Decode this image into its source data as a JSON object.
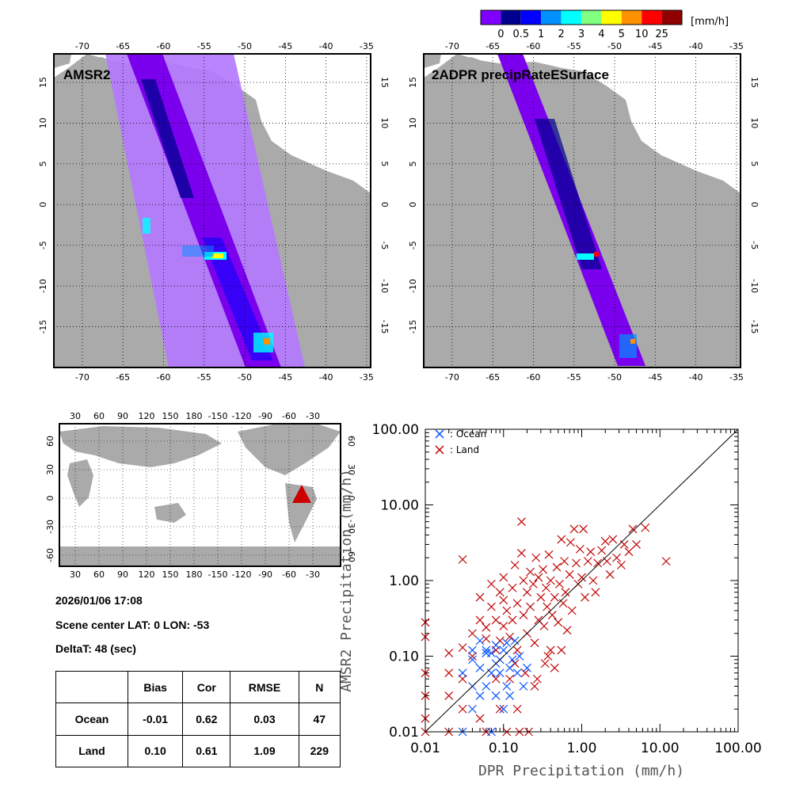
{
  "colorbar": {
    "unit": "[mm/h]",
    "labels": [
      "0",
      "0.5",
      "1",
      "2",
      "3",
      "4",
      "5",
      "10",
      "25"
    ],
    "colors": [
      "#7f00ff",
      "#000090",
      "#0000ff",
      "#0090ff",
      "#00ffff",
      "#80ff80",
      "#ffff00",
      "#ff9000",
      "#ff0000",
      "#900000"
    ]
  },
  "colors": {
    "land": "#aaaaaa",
    "amsr2_light": "#b47aff",
    "amsr2_band": "#7a00ee",
    "ocean_marker": "#0050ff",
    "land_marker": "#c00000",
    "triangle": "#cc0000"
  },
  "map_left": {
    "title": "AMSR2",
    "lon_labels": [
      "-70",
      "-65",
      "-60",
      "-55",
      "-50",
      "-45",
      "-40",
      "-35"
    ],
    "lat_labels": [
      "15",
      "10",
      "5",
      "0",
      "-5",
      "-10",
      "-15"
    ]
  },
  "map_right": {
    "title": "2ADPR precipRateESurface",
    "lon_labels": [
      "-70",
      "-65",
      "-60",
      "-55",
      "-50",
      "-45",
      "-40",
      "-35"
    ],
    "lat_labels": [
      "15",
      "10",
      "5",
      "0",
      "-5",
      "-10",
      "-15"
    ]
  },
  "world_map": {
    "lon_labels": [
      "30",
      "60",
      "90",
      "120",
      "150",
      "180",
      "-150",
      "-120",
      "-90",
      "-60",
      "-30"
    ],
    "lat_labels": [
      "60",
      "30",
      "0",
      "-30",
      "-60"
    ],
    "scene_marker": {
      "lon": -53,
      "lat": 0
    }
  },
  "info": {
    "datetime": "2026/01/06 17:08",
    "scene_center": "Scene center LAT:  0   LON: -53",
    "deltat": "DeltaT:   48 (sec)"
  },
  "stats_table": {
    "headers": [
      "Bias",
      "Cor",
      "RMSE",
      "N"
    ],
    "rows": [
      {
        "label": "Ocean",
        "bias": "-0.01",
        "cor": "0.62",
        "rmse": "0.03",
        "n": "47"
      },
      {
        "label": "Land",
        "bias": "0.10",
        "cor": "0.61",
        "rmse": "1.09",
        "n": "229"
      }
    ]
  },
  "chart_data": {
    "type": "scatter",
    "xlabel": "DPR Precipitation (mm/h)",
    "ylabel": "AMSR2 Precipitation (mm/h)",
    "xscale": "log",
    "yscale": "log",
    "xlim": [
      0.01,
      100
    ],
    "ylim": [
      0.01,
      100
    ],
    "x_tick_labels": [
      "0.01",
      "0.10",
      "1.00",
      "10.00",
      "100.00"
    ],
    "y_tick_labels": [
      "0.01",
      "0.10",
      "1.00",
      "10.00",
      "100.00"
    ],
    "reference_line": "1:1",
    "legend": [
      {
        "name": ": Ocean",
        "marker": "x",
        "color": "#0050ff"
      },
      {
        "name": ": Land",
        "marker": "x",
        "color": "#c00000"
      }
    ],
    "series": [
      {
        "name": "Ocean",
        "color": "#0050ff",
        "points": [
          [
            0.03,
            0.06
          ],
          [
            0.04,
            0.04
          ],
          [
            0.04,
            0.09
          ],
          [
            0.05,
            0.03
          ],
          [
            0.05,
            0.07
          ],
          [
            0.06,
            0.11
          ],
          [
            0.06,
            0.04
          ],
          [
            0.07,
            0.11
          ],
          [
            0.07,
            0.06
          ],
          [
            0.08,
            0.14
          ],
          [
            0.08,
            0.03
          ],
          [
            0.09,
            0.06
          ],
          [
            0.1,
            0.12
          ],
          [
            0.1,
            0.02
          ],
          [
            0.11,
            0.04
          ],
          [
            0.12,
            0.07
          ],
          [
            0.13,
            0.09
          ],
          [
            0.14,
            0.16
          ],
          [
            0.05,
            0.16
          ],
          [
            0.06,
            0.12
          ],
          [
            0.03,
            0.01
          ],
          [
            0.04,
            0.02
          ],
          [
            0.07,
            0.01
          ],
          [
            0.09,
            0.09
          ],
          [
            0.12,
            0.03
          ],
          [
            0.15,
            0.06
          ],
          [
            0.18,
            0.04
          ],
          [
            0.2,
            0.07
          ],
          [
            0.04,
            0.12
          ],
          [
            0.08,
            0.08
          ],
          [
            0.11,
            0.15
          ],
          [
            0.16,
            0.1
          ]
        ]
      },
      {
        "name": "Land",
        "color": "#c00000",
        "points": [
          [
            0.01,
            0.28
          ],
          [
            0.01,
            0.18
          ],
          [
            0.01,
            0.06
          ],
          [
            0.01,
            0.03
          ],
          [
            0.01,
            0.015
          ],
          [
            0.01,
            0.01
          ],
          [
            0.02,
            0.11
          ],
          [
            0.02,
            0.06
          ],
          [
            0.02,
            0.03
          ],
          [
            0.02,
            0.01
          ],
          [
            0.03,
            1.9
          ],
          [
            0.03,
            0.13
          ],
          [
            0.03,
            0.05
          ],
          [
            0.04,
            0.2
          ],
          [
            0.04,
            0.1
          ],
          [
            0.05,
            0.6
          ],
          [
            0.05,
            0.3
          ],
          [
            0.06,
            0.24
          ],
          [
            0.06,
            0.17
          ],
          [
            0.07,
            0.9
          ],
          [
            0.07,
            0.45
          ],
          [
            0.08,
            0.3
          ],
          [
            0.08,
            0.12
          ],
          [
            0.09,
            0.7
          ],
          [
            0.09,
            0.16
          ],
          [
            0.1,
            1.1
          ],
          [
            0.1,
            0.55
          ],
          [
            0.1,
            0.25
          ],
          [
            0.11,
            0.4
          ],
          [
            0.12,
            0.18
          ],
          [
            0.13,
            0.8
          ],
          [
            0.13,
            0.3
          ],
          [
            0.14,
            1.6
          ],
          [
            0.15,
            0.5
          ],
          [
            0.15,
            0.12
          ],
          [
            0.17,
            6.0
          ],
          [
            0.17,
            2.3
          ],
          [
            0.18,
            1.0
          ],
          [
            0.18,
            0.35
          ],
          [
            0.2,
            0.7
          ],
          [
            0.2,
            0.2
          ],
          [
            0.22,
            1.3
          ],
          [
            0.22,
            0.45
          ],
          [
            0.24,
            0.9
          ],
          [
            0.25,
            0.15
          ],
          [
            0.26,
            2.0
          ],
          [
            0.28,
            1.1
          ],
          [
            0.28,
            0.3
          ],
          [
            0.3,
            0.6
          ],
          [
            0.32,
            1.4
          ],
          [
            0.33,
            0.25
          ],
          [
            0.35,
            0.8
          ],
          [
            0.36,
            0.45
          ],
          [
            0.38,
            2.2
          ],
          [
            0.4,
            1.0
          ],
          [
            0.4,
            0.12
          ],
          [
            0.42,
            0.35
          ],
          [
            0.45,
            0.6
          ],
          [
            0.48,
            1.5
          ],
          [
            0.5,
            0.28
          ],
          [
            0.52,
            0.9
          ],
          [
            0.55,
            3.5
          ],
          [
            0.58,
            0.5
          ],
          [
            0.6,
            1.8
          ],
          [
            0.62,
            0.7
          ],
          [
            0.65,
            0.22
          ],
          [
            0.7,
            1.2
          ],
          [
            0.72,
            3.2
          ],
          [
            0.75,
            0.4
          ],
          [
            0.8,
            4.8
          ],
          [
            0.85,
            1.7
          ],
          [
            0.9,
            0.9
          ],
          [
            0.95,
            2.6
          ],
          [
            1.0,
            1.1
          ],
          [
            1.05,
            4.8
          ],
          [
            1.1,
            0.6
          ],
          [
            1.2,
            1.8
          ],
          [
            1.3,
            2.4
          ],
          [
            1.4,
            1.0
          ],
          [
            1.5,
            0.7
          ],
          [
            1.6,
            1.7
          ],
          [
            1.8,
            2.5
          ],
          [
            2.0,
            3.3
          ],
          [
            2.1,
            1.8
          ],
          [
            2.3,
            1.2
          ],
          [
            2.5,
            3.5
          ],
          [
            2.8,
            2.0
          ],
          [
            3.2,
            1.6
          ],
          [
            3.5,
            3.0
          ],
          [
            4.0,
            2.4
          ],
          [
            4.5,
            4.8
          ],
          [
            5.0,
            3.0
          ],
          [
            6.5,
            5.0
          ],
          [
            12.0,
            1.8
          ],
          [
            0.11,
            0.01
          ],
          [
            0.16,
            0.01
          ],
          [
            0.21,
            0.01
          ],
          [
            0.06,
            0.01
          ],
          [
            0.09,
            0.02
          ],
          [
            0.15,
            0.02
          ],
          [
            0.25,
            0.04
          ],
          [
            0.34,
            0.08
          ],
          [
            0.45,
            0.07
          ],
          [
            0.03,
            0.02
          ],
          [
            0.05,
            0.015
          ],
          [
            0.12,
            0.05
          ],
          [
            0.19,
            0.06
          ],
          [
            0.27,
            0.05
          ],
          [
            0.37,
            0.1
          ],
          [
            0.55,
            0.12
          ],
          [
            0.08,
            0.05
          ],
          [
            0.14,
            0.08
          ]
        ]
      }
    ]
  }
}
